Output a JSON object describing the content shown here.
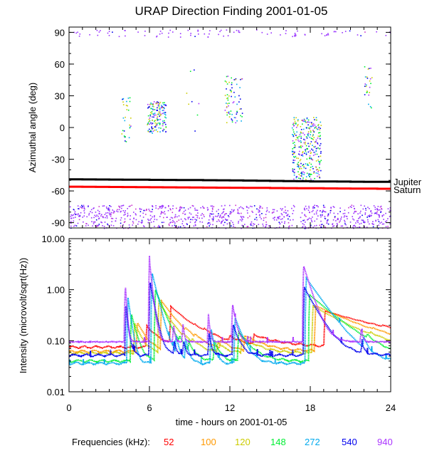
{
  "chart_data": [
    {
      "type": "scatter",
      "title": "URAP Direction Finding  2001-01-05",
      "ylabel": "Azimuthal angle (deg)",
      "xlim": [
        0,
        24
      ],
      "ylim": [
        -95,
        95
      ],
      "yticks": [
        90,
        60,
        30,
        0,
        -30,
        -60,
        -90
      ],
      "ytick_labels": [
        "90",
        "60",
        "30",
        "0",
        "-30",
        "-60",
        "-90"
      ],
      "reference_lines": [
        {
          "name": "Jupiter",
          "color": "#000000",
          "x": [
            0,
            6,
            12,
            18,
            24
          ],
          "y": [
            -49,
            -49.5,
            -50,
            -51,
            -51.5
          ]
        },
        {
          "name": "Saturn",
          "color": "#ff0000",
          "x": [
            0,
            6,
            12,
            18,
            24
          ],
          "y": [
            -56,
            -56.5,
            -57,
            -57.5,
            -58
          ]
        }
      ],
      "clusters": [
        {
          "name": "polar-band-top",
          "color": "#9933ff",
          "x_range": [
            0,
            24
          ],
          "y_range": [
            86,
            93
          ],
          "count": 90
        },
        {
          "name": "polar-band-bottom",
          "color": "#9933ff",
          "x_range": [
            0,
            24
          ],
          "y_range": [
            -95,
            -73
          ],
          "count": 900,
          "gap": [
            16.8,
            17.2
          ]
        },
        {
          "name": "event-4h",
          "color": "#0099ff",
          "x_range": [
            3.9,
            4.6
          ],
          "y_range": [
            -15,
            30
          ],
          "count": 30
        },
        {
          "name": "event-6h",
          "color": "#33cc33",
          "x_range": [
            5.8,
            7.2
          ],
          "y_range": [
            -5,
            25
          ],
          "count": 160
        },
        {
          "name": "event-12h",
          "color": "#0099ff",
          "x_range": [
            11.6,
            12.9
          ],
          "y_range": [
            5,
            50
          ],
          "count": 70
        },
        {
          "name": "event-17h",
          "color": "#33cc33",
          "x_range": [
            16.6,
            18.8
          ],
          "y_range": [
            -50,
            10
          ],
          "count": 330
        },
        {
          "name": "event-22h",
          "color": "#33cc33",
          "x_range": [
            22.0,
            22.6
          ],
          "y_range": [
            18,
            58
          ],
          "count": 25
        },
        {
          "name": "sparse-8-10h",
          "color": "#cccc00",
          "x_range": [
            8.5,
            10.5
          ],
          "y_range": [
            -20,
            55
          ],
          "count": 8
        }
      ]
    },
    {
      "type": "line",
      "ylabel": "Intensity (microvolt/sqrt(Hz))",
      "xlabel": "time - hours on 2001-01-05",
      "yscale": "log",
      "xlim": [
        0,
        24
      ],
      "ylim": [
        0.01,
        10
      ],
      "xticks": [
        0,
        6,
        12,
        18,
        24
      ],
      "xtick_labels": [
        "0",
        "6",
        "12",
        "18",
        "24"
      ],
      "yticks": [
        10,
        1,
        0.1,
        0.01
      ],
      "ytick_labels": [
        "10.00",
        "1.00",
        "0.10",
        "0.01"
      ],
      "base_levels": [
        0.075,
        0.062,
        0.057,
        0.04,
        0.036,
        0.052,
        0.095
      ],
      "bursts": [
        {
          "t": 1.1,
          "amp": 0.0,
          "w": 0.3
        },
        {
          "t": 4.2,
          "amp": 1.2,
          "w": 0.5
        },
        {
          "t": 6.0,
          "amp": 3.8,
          "w": 0.9
        },
        {
          "t": 7.8,
          "amp": 0.12,
          "w": 0.5
        },
        {
          "t": 8.5,
          "amp": 0.13,
          "w": 0.5
        },
        {
          "t": 10.4,
          "amp": 0.25,
          "w": 0.5
        },
        {
          "t": 12.2,
          "amp": 0.45,
          "w": 1.2
        },
        {
          "t": 17.5,
          "amp": 3.0,
          "w": 2.6
        },
        {
          "t": 21.8,
          "amp": 0.08,
          "w": 0.6
        }
      ],
      "series": [
        {
          "name": "52",
          "color": "#ff0000"
        },
        {
          "name": "100",
          "color": "#ff9900"
        },
        {
          "name": "120",
          "color": "#cccc00"
        },
        {
          "name": "148",
          "color": "#00ee33"
        },
        {
          "name": "272",
          "color": "#00aaee"
        },
        {
          "name": "540",
          "color": "#0000ee"
        },
        {
          "name": "940",
          "color": "#aa33ff"
        }
      ]
    }
  ],
  "legend": {
    "label": "Frequencies (kHz):",
    "items": [
      {
        "value": "52",
        "color": "#ff0000"
      },
      {
        "value": "100",
        "color": "#ff9900"
      },
      {
        "value": "120",
        "color": "#cccc00"
      },
      {
        "value": "148",
        "color": "#00ee33"
      },
      {
        "value": "272",
        "color": "#00aaee"
      },
      {
        "value": "540",
        "color": "#0000ee"
      },
      {
        "value": "940",
        "color": "#aa33ff"
      }
    ]
  },
  "labels": {
    "jupiter": "Jupiter",
    "saturn": "Saturn"
  }
}
